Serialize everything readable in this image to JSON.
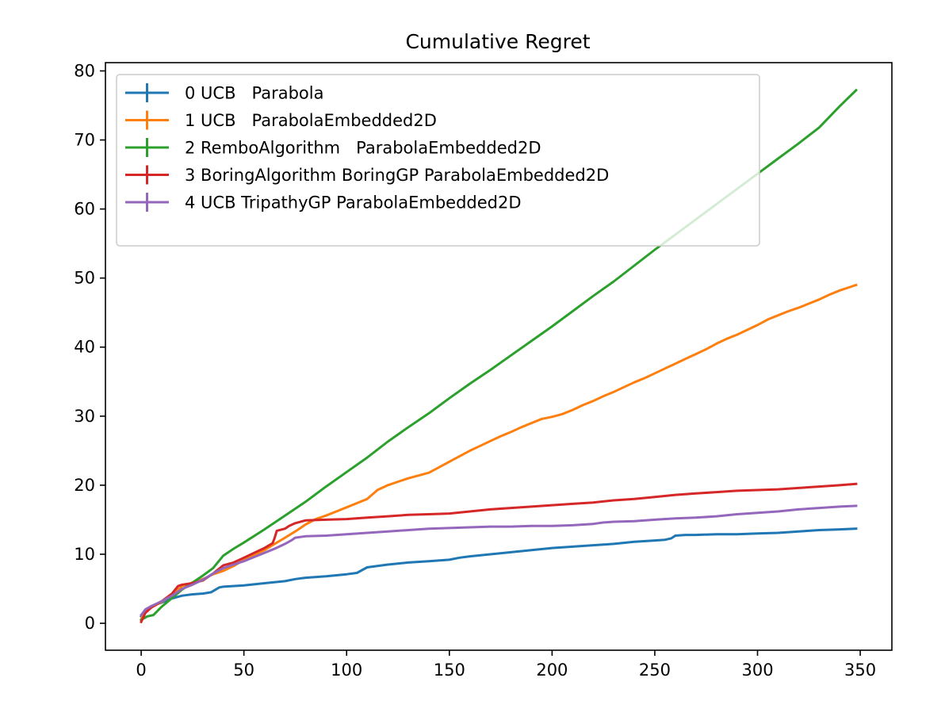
{
  "chart_data": {
    "type": "line",
    "title": "Cumulative Regret",
    "xlabel": "",
    "ylabel": "",
    "xlim": [
      -17.4,
      365.4
    ],
    "ylim": [
      -3.9,
      81.2
    ],
    "xticks": [
      0,
      50,
      100,
      150,
      200,
      250,
      300,
      350
    ],
    "yticks": [
      0,
      10,
      20,
      30,
      40,
      50,
      60,
      70,
      80
    ],
    "grid": false,
    "legend_placement": "top-left",
    "series": [
      {
        "name": "0 UCB   Parabola",
        "color": "#1f77b4",
        "x": [
          0,
          2,
          5,
          10,
          15,
          20,
          25,
          30,
          34,
          38,
          40,
          50,
          60,
          70,
          75,
          80,
          90,
          100,
          105,
          110,
          120,
          130,
          140,
          150,
          155,
          160,
          170,
          180,
          190,
          200,
          210,
          220,
          230,
          240,
          250,
          255,
          258,
          260,
          265,
          270,
          280,
          290,
          300,
          310,
          320,
          325,
          330,
          340,
          348
        ],
        "y": [
          1.0,
          1.9,
          2.5,
          3.0,
          3.6,
          4.0,
          4.2,
          4.3,
          4.5,
          5.2,
          5.3,
          5.5,
          5.8,
          6.1,
          6.4,
          6.6,
          6.8,
          7.1,
          7.3,
          8.1,
          8.5,
          8.8,
          9.0,
          9.2,
          9.5,
          9.7,
          10.0,
          10.3,
          10.6,
          10.9,
          11.1,
          11.3,
          11.5,
          11.8,
          12.0,
          12.1,
          12.3,
          12.7,
          12.8,
          12.8,
          12.9,
          12.9,
          13.0,
          13.1,
          13.3,
          13.4,
          13.5,
          13.6,
          13.7
        ]
      },
      {
        "name": "1 UCB   ParabolaEmbedded2D",
        "color": "#ff7f0e",
        "x": [
          0,
          1,
          5,
          10,
          15,
          20,
          25,
          30,
          35,
          40,
          45,
          50,
          55,
          60,
          65,
          70,
          75,
          80,
          85,
          90,
          95,
          100,
          105,
          110,
          115,
          120,
          125,
          130,
          140,
          145,
          150,
          155,
          160,
          165,
          170,
          175,
          180,
          185,
          190,
          195,
          200,
          205,
          210,
          215,
          220,
          225,
          230,
          235,
          240,
          245,
          250,
          255,
          260,
          265,
          270,
          275,
          280,
          285,
          290,
          295,
          300,
          305,
          310,
          315,
          320,
          325,
          330,
          335,
          340,
          345,
          348
        ],
        "y": [
          0.5,
          1.4,
          2.3,
          3.1,
          4.1,
          5.4,
          5.9,
          6.4,
          7.1,
          7.6,
          8.3,
          9.2,
          9.9,
          10.6,
          11.5,
          12.4,
          13.3,
          14.3,
          15.1,
          15.6,
          16.2,
          16.8,
          17.4,
          18.0,
          19.3,
          20.0,
          20.5,
          21.0,
          21.8,
          22.6,
          23.4,
          24.2,
          25.0,
          25.7,
          26.4,
          27.1,
          27.7,
          28.4,
          29.0,
          29.6,
          29.9,
          30.3,
          30.9,
          31.6,
          32.2,
          32.9,
          33.5,
          34.2,
          34.9,
          35.5,
          36.2,
          36.9,
          37.6,
          38.3,
          39.0,
          39.7,
          40.5,
          41.2,
          41.8,
          42.5,
          43.2,
          44.0,
          44.6,
          45.2,
          45.7,
          46.3,
          46.9,
          47.6,
          48.2,
          48.7,
          49.0
        ]
      },
      {
        "name": "2 RemboAlgorithm   ParabolaEmbedded2D",
        "color": "#2ca02c",
        "x": [
          0,
          3,
          6,
          10,
          20,
          30,
          35,
          40,
          45,
          50,
          60,
          70,
          80,
          90,
          100,
          110,
          120,
          130,
          140,
          150,
          160,
          170,
          180,
          190,
          200,
          210,
          220,
          230,
          240,
          250,
          260,
          270,
          280,
          290,
          300,
          310,
          320,
          330,
          340,
          348
        ],
        "y": [
          0.5,
          1.0,
          1.2,
          2.4,
          4.9,
          6.9,
          8.0,
          9.8,
          10.8,
          11.7,
          13.6,
          15.6,
          17.6,
          19.8,
          21.9,
          24.0,
          26.3,
          28.4,
          30.4,
          32.6,
          34.7,
          36.7,
          38.8,
          40.9,
          43.0,
          45.2,
          47.4,
          49.5,
          51.8,
          54.1,
          56.3,
          58.5,
          60.7,
          62.9,
          65.1,
          67.3,
          69.5,
          71.8,
          74.9,
          77.2
        ]
      },
      {
        "name": "3 BoringAlgorithm BoringGP ParabolaEmbedded2D",
        "color": "#d62728",
        "x": [
          0,
          2,
          5,
          10,
          15,
          18,
          20,
          25,
          30,
          35,
          40,
          45,
          50,
          55,
          60,
          64,
          65,
          66,
          70,
          72,
          75,
          80,
          90,
          100,
          110,
          120,
          130,
          140,
          150,
          160,
          170,
          180,
          190,
          200,
          210,
          220,
          230,
          240,
          250,
          260,
          270,
          280,
          290,
          300,
          310,
          320,
          330,
          340,
          348
        ],
        "y": [
          0.2,
          1.5,
          2.3,
          3.2,
          4.3,
          5.4,
          5.6,
          5.8,
          6.2,
          7.2,
          8.4,
          8.8,
          9.5,
          10.2,
          10.9,
          11.6,
          12.4,
          13.4,
          13.7,
          14.1,
          14.5,
          14.9,
          15.0,
          15.1,
          15.3,
          15.5,
          15.7,
          15.8,
          15.9,
          16.2,
          16.5,
          16.7,
          16.9,
          17.1,
          17.3,
          17.5,
          17.8,
          18.0,
          18.3,
          18.6,
          18.8,
          19.0,
          19.2,
          19.3,
          19.4,
          19.6,
          19.8,
          20.0,
          20.2
        ]
      },
      {
        "name": "4 UCB TripathyGP ParabolaEmbedded2D",
        "color": "#9467bd",
        "x": [
          0,
          2,
          5,
          10,
          15,
          20,
          25,
          30,
          35,
          40,
          45,
          50,
          55,
          60,
          65,
          70,
          73,
          75,
          80,
          90,
          100,
          110,
          120,
          130,
          140,
          150,
          160,
          170,
          180,
          190,
          200,
          210,
          220,
          225,
          230,
          240,
          250,
          260,
          270,
          280,
          290,
          300,
          310,
          320,
          330,
          340,
          348
        ],
        "y": [
          1.2,
          2.0,
          2.5,
          3.2,
          4.0,
          5.0,
          5.6,
          6.3,
          7.2,
          8.0,
          8.5,
          9.0,
          9.6,
          10.2,
          10.8,
          11.5,
          12.0,
          12.4,
          12.6,
          12.7,
          12.9,
          13.1,
          13.3,
          13.5,
          13.7,
          13.8,
          13.9,
          14.0,
          14.0,
          14.1,
          14.1,
          14.2,
          14.4,
          14.6,
          14.7,
          14.8,
          15.0,
          15.2,
          15.3,
          15.5,
          15.8,
          16.0,
          16.2,
          16.5,
          16.7,
          16.9,
          17.0
        ]
      }
    ]
  }
}
